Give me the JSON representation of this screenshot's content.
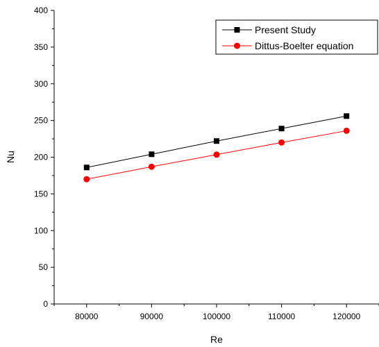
{
  "chart_data": {
    "type": "line",
    "title": "",
    "xlabel": "Re",
    "ylabel": "Nu",
    "x": [
      80000,
      90000,
      100000,
      110000,
      120000
    ],
    "xlim": [
      75000,
      125000
    ],
    "ylim": [
      0,
      400
    ],
    "x_ticks": [
      "80000",
      "90000",
      "100000",
      "110000",
      "120000"
    ],
    "y_ticks": [
      "0",
      "50",
      "100",
      "150",
      "200",
      "250",
      "300",
      "350",
      "400"
    ],
    "grid": false,
    "legend_position": "top-right",
    "series": [
      {
        "name": "Present Study",
        "values": [
          186,
          204,
          222,
          239,
          256
        ],
        "color": "#000000",
        "marker": "square"
      },
      {
        "name": "Dittus-Boelter equation",
        "values": [
          170,
          187,
          203.5,
          220,
          236
        ],
        "color": "#ff0000",
        "marker": "circle"
      }
    ]
  }
}
